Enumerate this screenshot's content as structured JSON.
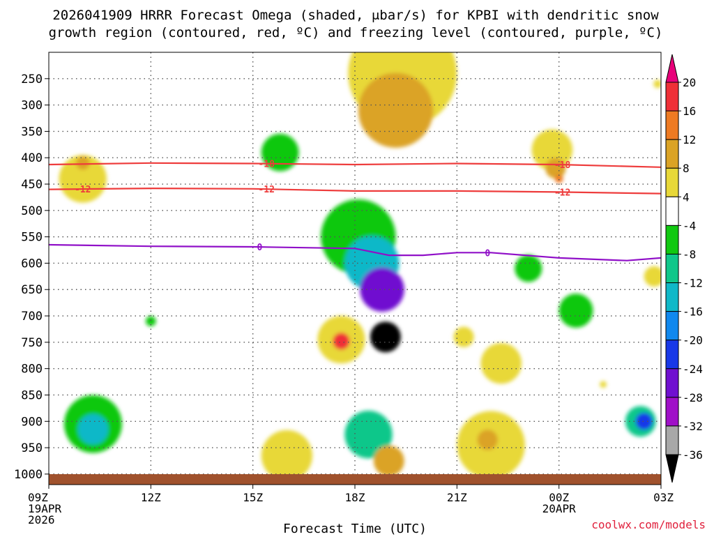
{
  "chart_data": {
    "type": "heatmap",
    "title_lines": [
      "2026041909 HRRR Forecast Omega (shaded, μbar/s) for KPBI with dendritic snow",
      "growth region (contoured, red, ºC) and freezing level (contoured, purple, ºC)"
    ],
    "xlabel": "Forecast Time (UTC)",
    "ylabel": "",
    "watermark": "coolwx.com/models",
    "x_ticks": [
      {
        "hour": 0,
        "lines": [
          "09Z",
          "19APR",
          "2026"
        ]
      },
      {
        "hour": 3,
        "lines": [
          "12Z"
        ]
      },
      {
        "hour": 6,
        "lines": [
          "15Z"
        ]
      },
      {
        "hour": 9,
        "lines": [
          "18Z"
        ]
      },
      {
        "hour": 12,
        "lines": [
          "21Z"
        ]
      },
      {
        "hour": 15,
        "lines": [
          "00Z",
          "20APR"
        ]
      },
      {
        "hour": 18,
        "lines": [
          "03Z"
        ]
      }
    ],
    "x_range_hours": [
      0,
      18
    ],
    "y_ticks": [
      250,
      300,
      350,
      400,
      450,
      500,
      550,
      600,
      650,
      700,
      750,
      800,
      850,
      900,
      950,
      1000
    ],
    "y_range_hPa": [
      1020,
      200
    ],
    "colorbar": {
      "labels": [
        "20",
        "16",
        "12",
        "8",
        "4",
        "-4",
        "-8",
        "-12",
        "-16",
        "-20",
        "-24",
        "-28",
        "-32",
        "-36"
      ],
      "colors": [
        "#e8007a",
        "#ef2f37",
        "#ee7a22",
        "#dba325",
        "#e8d838",
        "#ffffff",
        "#11c811",
        "#10c78a",
        "#10b8c8",
        "#1088ee",
        "#1838e8",
        "#7010d0",
        "#a010c8",
        "#a8a8a8",
        "#000000"
      ]
    },
    "contours": [
      {
        "name": "dendritic-top",
        "label": "-18",
        "color": "#ee3c3c",
        "label_at_hours": [
          6.4,
          15.1
        ],
        "points": [
          [
            0,
            413
          ],
          [
            3,
            410
          ],
          [
            6,
            411
          ],
          [
            9,
            413
          ],
          [
            12,
            411
          ],
          [
            15,
            413
          ],
          [
            18,
            418
          ]
        ]
      },
      {
        "name": "dendritic-bottom",
        "label": "-12",
        "color": "#ee3c3c",
        "label_at_hours": [
          1.0,
          6.4,
          15.1
        ],
        "points": [
          [
            0,
            460
          ],
          [
            3,
            458
          ],
          [
            6,
            459
          ],
          [
            9,
            463
          ],
          [
            12,
            463
          ],
          [
            15,
            465
          ],
          [
            18,
            468
          ]
        ]
      },
      {
        "name": "freezing-level",
        "label": "0",
        "color": "#9010c8",
        "label_at_hours": [
          6.2,
          12.9
        ],
        "points": [
          [
            0,
            565
          ],
          [
            3,
            568
          ],
          [
            6,
            569
          ],
          [
            9,
            572
          ],
          [
            10,
            585
          ],
          [
            11,
            585
          ],
          [
            12,
            580
          ],
          [
            13,
            580
          ],
          [
            15,
            590
          ],
          [
            17,
            595
          ],
          [
            18,
            590
          ]
        ]
      }
    ],
    "omega_cells": [
      {
        "t": 1.0,
        "p": 440,
        "rt": 0.7,
        "rp": 140,
        "value": 6
      },
      {
        "t": 1.0,
        "p": 410,
        "rt": 0.2,
        "rp": 30,
        "value": 9
      },
      {
        "t": 10.4,
        "p": 240,
        "rt": 1.6,
        "rp": 160,
        "value": 6
      },
      {
        "t": 10.2,
        "p": 310,
        "rt": 1.1,
        "rp": 90,
        "value": 9
      },
      {
        "t": 14.8,
        "p": 385,
        "rt": 0.6,
        "rp": 150,
        "value": 6
      },
      {
        "t": 14.9,
        "p": 420,
        "rt": 0.3,
        "rp": 60,
        "value": 10
      },
      {
        "t": 15.0,
        "p": 440,
        "rt": 0.12,
        "rp": 30,
        "value": 14
      },
      {
        "t": 6.8,
        "p": 390,
        "rt": 0.55,
        "rp": 55,
        "value": -6
      },
      {
        "t": 9.1,
        "p": 550,
        "rt": 1.1,
        "rp": 200,
        "value": -7
      },
      {
        "t": 9.5,
        "p": 600,
        "rt": 0.8,
        "rp": 150,
        "value": -15
      },
      {
        "t": 9.8,
        "p": 650,
        "rt": 0.65,
        "rp": 120,
        "value": -24
      },
      {
        "t": 9.9,
        "p": 740,
        "rt": 0.45,
        "rp": 160,
        "value": -38
      },
      {
        "t": 9.4,
        "p": 925,
        "rt": 0.7,
        "rp": 45,
        "value": -8
      },
      {
        "t": 8.6,
        "p": 745,
        "rt": 0.7,
        "rp": 55,
        "value": 6
      },
      {
        "t": 8.6,
        "p": 748,
        "rt": 0.25,
        "rp": 30,
        "value": 16
      },
      {
        "t": 10.0,
        "p": 975,
        "rt": 0.45,
        "rp": 20,
        "value": 8
      },
      {
        "t": 7.0,
        "p": 965,
        "rt": 0.75,
        "rp": 18,
        "value": 5
      },
      {
        "t": 1.3,
        "p": 905,
        "rt": 0.85,
        "rp": 55,
        "value": -7
      },
      {
        "t": 1.3,
        "p": 915,
        "rt": 0.45,
        "rp": 35,
        "value": -12
      },
      {
        "t": 3.0,
        "p": 710,
        "rt": 0.15,
        "rp": 30,
        "value": -6
      },
      {
        "t": 12.2,
        "p": 740,
        "rt": 0.3,
        "rp": 45,
        "value": 5
      },
      {
        "t": 13.3,
        "p": 790,
        "rt": 0.6,
        "rp": 45,
        "value": 5
      },
      {
        "t": 13.0,
        "p": 945,
        "rt": 1.0,
        "rp": 25,
        "value": 5
      },
      {
        "t": 12.9,
        "p": 935,
        "rt": 0.3,
        "rp": 15,
        "value": 9
      },
      {
        "t": 15.5,
        "p": 690,
        "rt": 0.5,
        "rp": 45,
        "value": -6
      },
      {
        "t": 14.1,
        "p": 610,
        "rt": 0.4,
        "rp": 25,
        "value": -6
      },
      {
        "t": 17.4,
        "p": 900,
        "rt": 0.45,
        "rp": 60,
        "value": -8
      },
      {
        "t": 17.5,
        "p": 900,
        "rt": 0.25,
        "rp": 40,
        "value": -22
      },
      {
        "t": 17.8,
        "p": 625,
        "rt": 0.3,
        "rp": 110,
        "value": 5
      },
      {
        "t": 17.9,
        "p": 260,
        "rt": 0.12,
        "rp": 80,
        "value": 5
      },
      {
        "t": 16.3,
        "p": 830,
        "rt": 0.1,
        "rp": 40,
        "value": 5
      }
    ],
    "ground_bar_color": "#a0522d"
  }
}
